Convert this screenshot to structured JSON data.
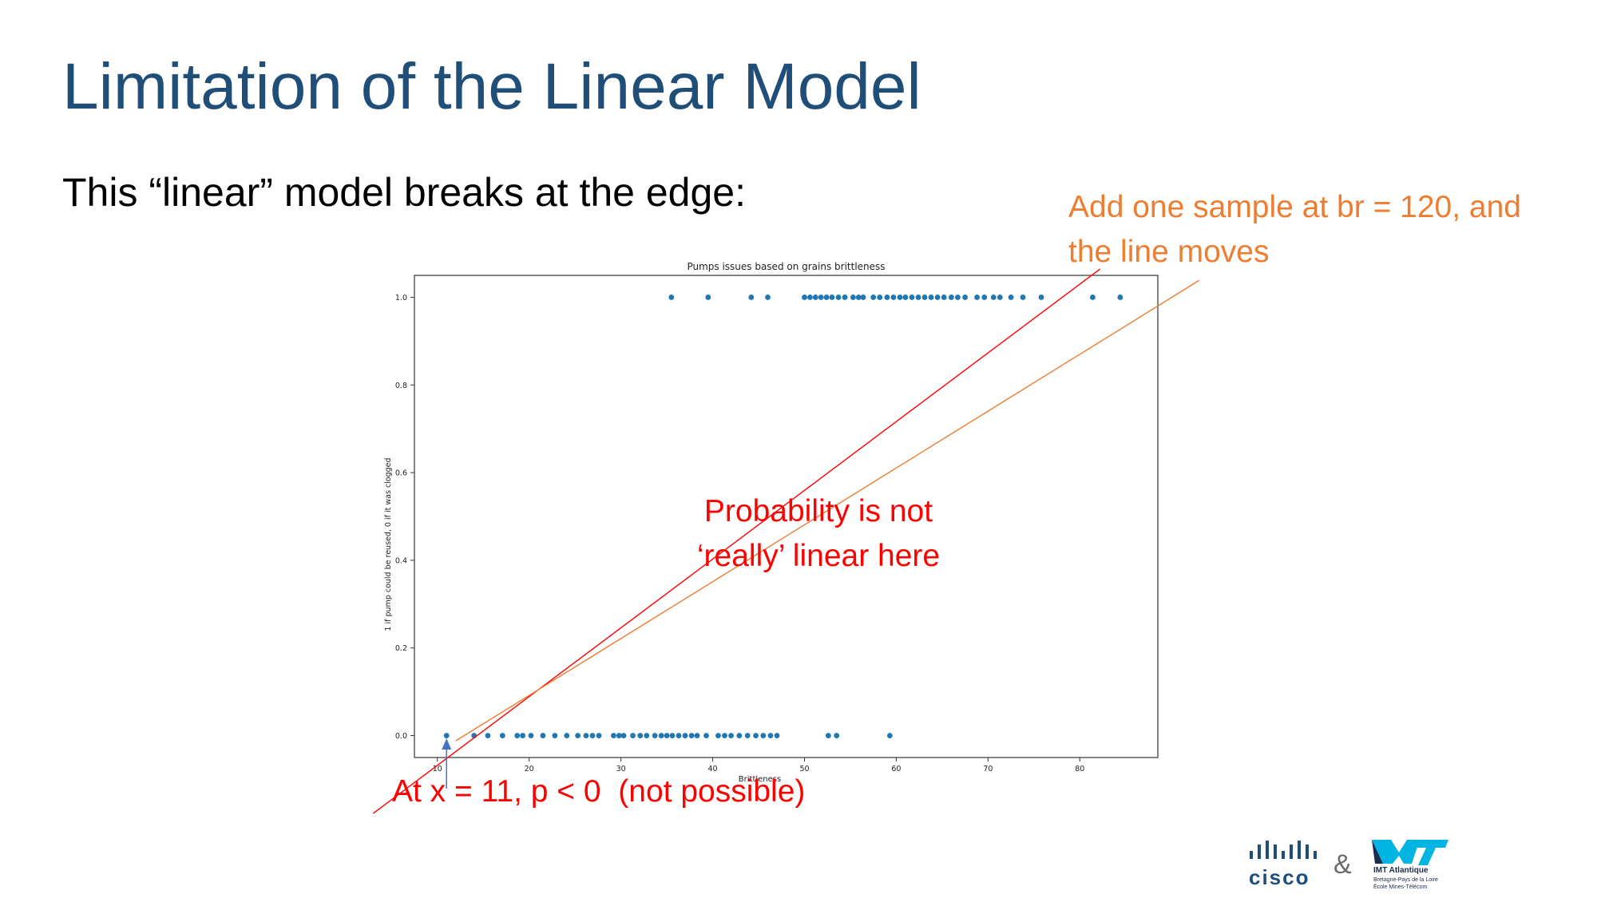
{
  "slide": {
    "title": "Limitation of the Linear Model",
    "subtitle": "This “linear” model breaks at the edge:",
    "annotation_orange_line1": "Add one sample at br = 120, and",
    "annotation_orange_line2": "the line moves",
    "annotation_mid_line1": "Probability is not",
    "annotation_mid_line2": "‘really’ linear here",
    "annotation_bottom": "At x = 11, p < 0  (not possible)",
    "colors": {
      "title": "#1f4e79",
      "orange": "#ed7d31",
      "red": "#ff0000",
      "points": "#1f77b4",
      "arrow": "#4472c4"
    }
  },
  "chart_data": {
    "type": "scatter",
    "title": "Pumps issues based on grains brittleness",
    "xlabel": "Brittleness",
    "ylabel": "1 if pump could be reused, 0 if it was clogged",
    "xlim": [
      7.5,
      88.5
    ],
    "ylim": [
      -0.05,
      1.05
    ],
    "xticks": [
      10,
      20,
      30,
      40,
      50,
      60,
      70,
      80
    ],
    "yticks": [
      0.0,
      0.2,
      0.4,
      0.6,
      0.8,
      1.0
    ],
    "grid": false,
    "series": [
      {
        "y": 1,
        "x": [
          35.5,
          39.5,
          44.2,
          46.0,
          50.0,
          50.6,
          51.2,
          51.8,
          52.4,
          53.0,
          53.7,
          54.4,
          55.3,
          55.9,
          56.4,
          57.5,
          58.2,
          59.0,
          59.7,
          60.4,
          61.0,
          61.7,
          62.4,
          63.1,
          63.8,
          64.5,
          65.2,
          66.0,
          66.7,
          67.5,
          68.8,
          69.6,
          70.6,
          71.3,
          72.5,
          73.8,
          75.8,
          81.4,
          84.4
        ]
      },
      {
        "y": 0,
        "x": [
          11.0,
          14.0,
          15.5,
          17.1,
          18.7,
          19.3,
          20.2,
          21.5,
          22.8,
          24.1,
          25.3,
          26.2,
          26.9,
          27.6,
          29.2,
          29.8,
          30.3,
          31.3,
          32.1,
          32.8,
          33.7,
          34.4,
          35.0,
          35.6,
          36.3,
          37.0,
          37.7,
          38.3,
          39.3,
          40.6,
          41.3,
          42.0,
          42.9,
          43.8,
          44.7,
          45.5,
          46.3,
          47.0,
          52.6,
          53.5,
          59.3
        ]
      }
    ],
    "fit_lines": {
      "red": {
        "x": [
          10.5,
          80.0
        ],
        "y": [
          -0.06,
          1.03
        ]
      },
      "orange": {
        "x": [
          11.0,
          80.0
        ],
        "y": [
          -0.025,
          0.87
        ]
      }
    }
  }
}
